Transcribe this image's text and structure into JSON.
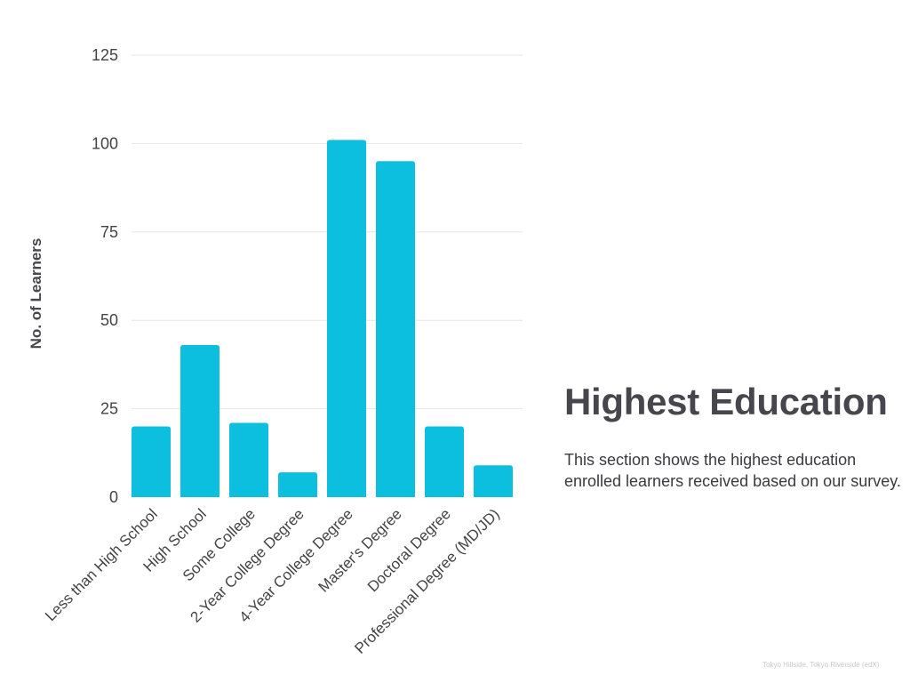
{
  "heading": "Highest Education",
  "description": "This section shows the highest education enrolled learners received based on our survey.",
  "source_note": "Tokyo Hillside, Tokyo Riverside (edX)",
  "colors": {
    "bar": "#0dbfdf",
    "grid": "#e6e6e6",
    "axis_text": "#444444",
    "heading": "#47464d"
  },
  "chart_data": {
    "type": "bar",
    "title": "",
    "xlabel": "",
    "ylabel": "No. of Learners",
    "categories": [
      "Less than High School",
      "High School",
      "Some College",
      "2-Year College Degree",
      "4-Year College Degree",
      "Master's Degree",
      "Doctoral Degree",
      "Professional Degree (MD/JD)"
    ],
    "values": [
      20,
      43,
      21,
      7,
      101,
      95,
      20,
      9
    ],
    "ylim": [
      0,
      125
    ],
    "yticks": [
      0,
      25,
      50,
      75,
      100,
      125
    ],
    "grid": true,
    "legend": "none"
  }
}
